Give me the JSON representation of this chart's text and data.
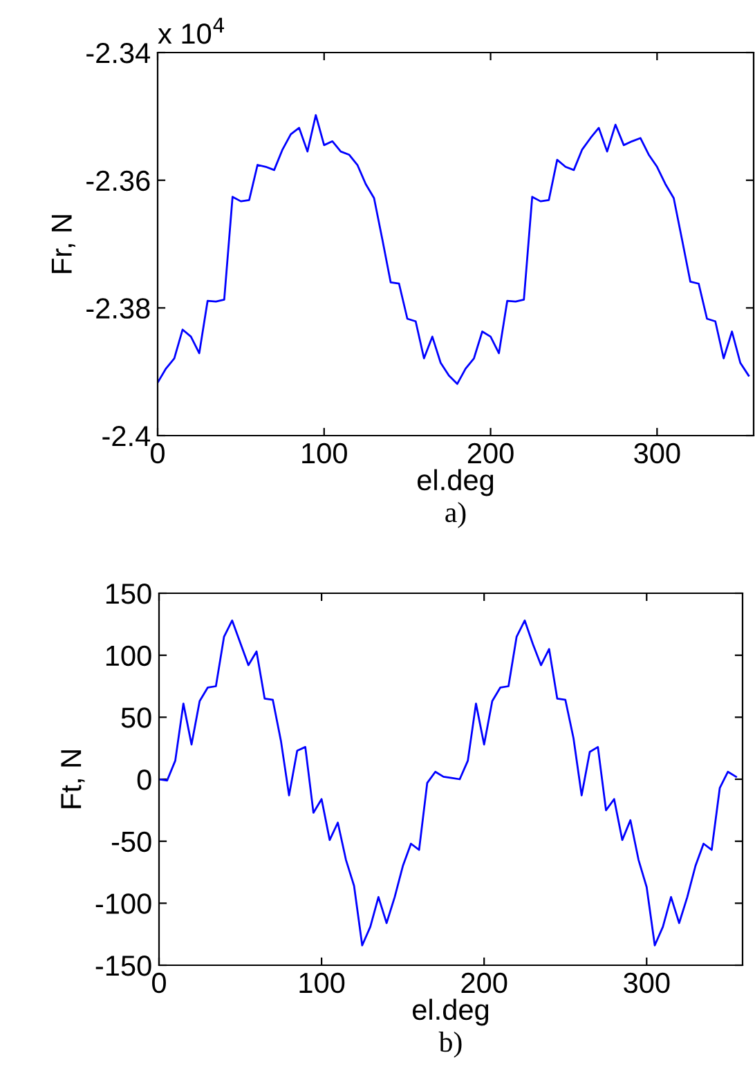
{
  "chart_data": [
    {
      "type": "line",
      "xlabel": "el.deg",
      "ylabel": "Fr, N",
      "annotations": [
        "x 10$^{4}$",
        "a)"
      ],
      "x": [
        0,
        5,
        10,
        15,
        20,
        25,
        30,
        35,
        40,
        45,
        50,
        55,
        60,
        65,
        70,
        75,
        80,
        85,
        90,
        95,
        100,
        105,
        110,
        115,
        120,
        125,
        130,
        135,
        140,
        145,
        150,
        155,
        160,
        165,
        170,
        175,
        180,
        185,
        190,
        195,
        200,
        205,
        210,
        215,
        220,
        225,
        230,
        235,
        240,
        245,
        250,
        255,
        260,
        265,
        270,
        275,
        280,
        285,
        290,
        295,
        300,
        305,
        310,
        315,
        320,
        325,
        330,
        335,
        340,
        345,
        350,
        355
      ],
      "series": [
        {
          "color": "#0000ff",
          "values": [
            -2.3917,
            -2.3895,
            -2.3879,
            -2.3834,
            -2.3845,
            -2.3871,
            -2.3789,
            -2.379,
            -2.3787,
            -2.3626,
            -2.3633,
            -2.3631,
            -2.3576,
            -2.3579,
            -2.3584,
            -2.3552,
            -2.3528,
            -2.3518,
            -2.3555,
            -2.3498,
            -2.3545,
            -2.3539,
            -2.3555,
            -2.356,
            -2.3576,
            -2.3606,
            -2.3628,
            -2.3693,
            -2.376,
            -2.3762,
            -2.3817,
            -2.3821,
            -2.3879,
            -2.3845,
            -2.3886,
            -2.3906,
            -2.3919,
            -2.3895,
            -2.3879,
            -2.3837,
            -2.3845,
            -2.3871,
            -2.3789,
            -2.379,
            -2.3787,
            -2.3626,
            -2.3633,
            -2.3631,
            -2.3568,
            -2.3579,
            -2.3584,
            -2.3552,
            -2.3534,
            -2.3518,
            -2.3555,
            -2.3513,
            -2.3545,
            -2.3539,
            -2.3534,
            -2.356,
            -2.3579,
            -2.3606,
            -2.3628,
            -2.3693,
            -2.3759,
            -2.3762,
            -2.3817,
            -2.3821,
            -2.3879,
            -2.3837,
            -2.3886,
            -2.3906
          ]
        }
      ],
      "xlim": [
        0,
        358
      ],
      "xticks": [
        0,
        100,
        200,
        300
      ],
      "ylim": [
        -2.4,
        -2.34
      ],
      "yticks": [
        -2.4,
        -2.38,
        -2.36,
        -2.34
      ],
      "marker": "none",
      "line_style": "solid"
    },
    {
      "type": "line",
      "xlabel": "el.deg",
      "ylabel": "Ft, N",
      "annotations": [
        "b)"
      ],
      "x": [
        0,
        5,
        10,
        15,
        20,
        25,
        30,
        35,
        40,
        45,
        50,
        55,
        60,
        65,
        70,
        75,
        80,
        85,
        90,
        95,
        100,
        105,
        110,
        115,
        120,
        125,
        130,
        135,
        140,
        145,
        150,
        155,
        160,
        165,
        170,
        175,
        180,
        185,
        190,
        195,
        200,
        205,
        210,
        215,
        220,
        225,
        230,
        235,
        240,
        245,
        250,
        255,
        260,
        265,
        270,
        275,
        280,
        285,
        290,
        295,
        300,
        305,
        310,
        315,
        320,
        325,
        330,
        335,
        340,
        345,
        350,
        355
      ],
      "series": [
        {
          "color": "#0000ff",
          "values": [
            0,
            -1,
            15,
            61,
            28,
            63,
            74,
            75,
            115,
            128,
            110,
            92,
            103,
            65,
            64,
            31,
            -13,
            23,
            26,
            -27,
            -16,
            -49,
            -35,
            -65,
            -86,
            -134,
            -119,
            -95,
            -116,
            -95,
            -70,
            -52,
            -57,
            -3,
            6,
            2,
            1,
            0,
            15,
            61,
            28,
            63,
            74,
            75,
            115,
            128,
            109,
            92,
            105,
            65,
            64,
            33,
            -13,
            22,
            26,
            -25,
            -16,
            -49,
            -33,
            -65,
            -87,
            -134,
            -119,
            -95,
            -116,
            -95,
            -70,
            -52,
            -57,
            -7,
            6,
            2
          ]
        }
      ],
      "xlim": [
        0,
        359
      ],
      "xticks": [
        0,
        100,
        200,
        300
      ],
      "ylim": [
        -150,
        150
      ],
      "yticks": [
        -150,
        -100,
        -50,
        0,
        50,
        100,
        150
      ],
      "marker": "none",
      "line_style": "solid"
    }
  ]
}
